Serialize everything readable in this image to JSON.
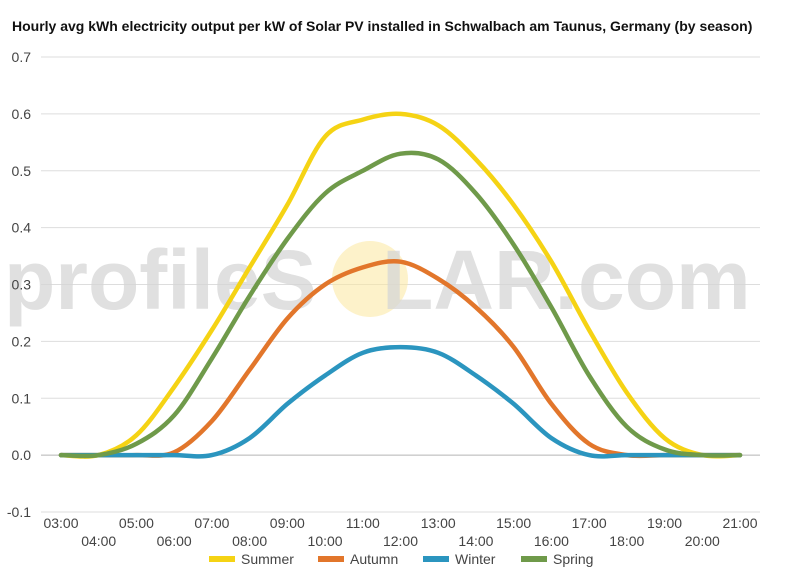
{
  "chart_data": {
    "type": "line",
    "title": "Hourly avg kWh electricity output per kW of Solar PV installed in Schwalbach am Taunus, Germany (by season)",
    "xlabel": "",
    "ylabel": "",
    "ylim": [
      -0.1,
      0.7
    ],
    "yticks": [
      "-0.1",
      "0.0",
      "0.1",
      "0.2",
      "0.3",
      "0.4",
      "0.5",
      "0.6",
      "0.7"
    ],
    "x": [
      "03:00",
      "04:00",
      "05:00",
      "06:00",
      "07:00",
      "08:00",
      "09:00",
      "10:00",
      "11:00",
      "12:00",
      "13:00",
      "14:00",
      "15:00",
      "16:00",
      "17:00",
      "18:00",
      "19:00",
      "20:00",
      "21:00"
    ],
    "grid": true,
    "legend_position": "bottom",
    "series": [
      {
        "name": "Summer",
        "color": "#f5d314",
        "values": [
          0.0,
          0.0,
          0.035,
          0.12,
          0.22,
          0.33,
          0.44,
          0.56,
          0.59,
          0.6,
          0.58,
          0.52,
          0.44,
          0.34,
          0.22,
          0.11,
          0.03,
          0.0,
          0.0
        ]
      },
      {
        "name": "Autumn",
        "color": "#e2762b",
        "values": [
          0.0,
          0.0,
          0.0,
          0.005,
          0.06,
          0.15,
          0.24,
          0.3,
          0.33,
          0.34,
          0.31,
          0.26,
          0.19,
          0.09,
          0.02,
          0.0,
          0.0,
          0.0,
          0.0
        ]
      },
      {
        "name": "Winter",
        "color": "#2b95bf",
        "values": [
          0.0,
          0.0,
          0.0,
          0.0,
          0.0,
          0.03,
          0.09,
          0.14,
          0.18,
          0.19,
          0.18,
          0.14,
          0.09,
          0.03,
          0.0,
          0.0,
          0.0,
          0.0,
          0.0
        ]
      },
      {
        "name": "Spring",
        "color": "#6f9a4a",
        "values": [
          0.0,
          0.0,
          0.02,
          0.07,
          0.17,
          0.28,
          0.38,
          0.46,
          0.5,
          0.53,
          0.52,
          0.46,
          0.37,
          0.26,
          0.14,
          0.05,
          0.01,
          0.0,
          0.0
        ]
      }
    ]
  },
  "watermark": {
    "prefix": "profileS",
    "sun_letter": "O",
    "suffix": "LAR.com",
    "sun_color": "#fbe79e"
  }
}
